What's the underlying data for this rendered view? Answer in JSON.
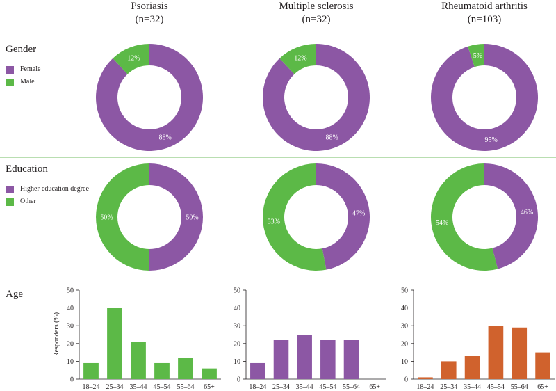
{
  "columns": [
    {
      "name": "Psoriasis",
      "n": "(n=32)"
    },
    {
      "name": "Multiple sclerosis",
      "n": "(n=32)"
    },
    {
      "name": "Rheumatoid arthritis",
      "n": "(n=103)"
    }
  ],
  "rows": {
    "gender": "Gender",
    "education": "Education",
    "age": "Age"
  },
  "legends": {
    "gender": [
      {
        "label": "Female",
        "color": "#8c57a4"
      },
      {
        "label": "Male",
        "color": "#5cb947"
      }
    ],
    "education": [
      {
        "label": "Higher-education degree",
        "color": "#8c57a4"
      },
      {
        "label": "Other",
        "color": "#5cb947"
      }
    ]
  },
  "colors": {
    "purple": "#8c57a4",
    "green": "#5cb947",
    "orange": "#d0622d",
    "divider": "#b9deb1"
  },
  "chart_data": [
    {
      "type": "pie",
      "chart": "gender",
      "column": "Psoriasis",
      "slices": [
        {
          "label": "Female",
          "value": 88,
          "text": "88%"
        },
        {
          "label": "Male",
          "value": 12,
          "text": "12%"
        }
      ]
    },
    {
      "type": "pie",
      "chart": "gender",
      "column": "Multiple sclerosis",
      "slices": [
        {
          "label": "Female",
          "value": 88,
          "text": "88%"
        },
        {
          "label": "Male",
          "value": 12,
          "text": "12%"
        }
      ]
    },
    {
      "type": "pie",
      "chart": "gender",
      "column": "Rheumatoid arthritis",
      "slices": [
        {
          "label": "Female",
          "value": 95,
          "text": "95%"
        },
        {
          "label": "Male",
          "value": 5,
          "text": "5%"
        }
      ]
    },
    {
      "type": "pie",
      "chart": "education",
      "column": "Psoriasis",
      "slices": [
        {
          "label": "Higher-education degree",
          "value": 50,
          "text": "50%"
        },
        {
          "label": "Other",
          "value": 50,
          "text": "50%"
        }
      ]
    },
    {
      "type": "pie",
      "chart": "education",
      "column": "Multiple sclerosis",
      "slices": [
        {
          "label": "Higher-education degree",
          "value": 47,
          "text": "47%"
        },
        {
          "label": "Other",
          "value": 53,
          "text": "53%"
        }
      ]
    },
    {
      "type": "pie",
      "chart": "education",
      "column": "Rheumatoid arthritis",
      "slices": [
        {
          "label": "Higher-education degree",
          "value": 46,
          "text": "46%"
        },
        {
          "label": "Other",
          "value": 54,
          "text": "54%"
        }
      ]
    },
    {
      "type": "bar",
      "chart": "age",
      "column": "Psoriasis",
      "categories": [
        "18–24",
        "25–34",
        "35–44",
        "45–54",
        "55–64",
        "65+"
      ],
      "values": [
        9,
        40,
        21,
        9,
        12,
        6
      ],
      "ylabel": "Responders (%)",
      "ylim": [
        0,
        50
      ],
      "yticks": [
        0,
        10,
        20,
        30,
        40,
        50
      ]
    },
    {
      "type": "bar",
      "chart": "age",
      "column": "Multiple sclerosis",
      "categories": [
        "18–24",
        "25–34",
        "35–44",
        "45–54",
        "55–64",
        "65+"
      ],
      "values": [
        9,
        22,
        25,
        22,
        22,
        0
      ],
      "ylim": [
        0,
        50
      ],
      "yticks": [
        0,
        10,
        20,
        30,
        40,
        50
      ]
    },
    {
      "type": "bar",
      "chart": "age",
      "column": "Rheumatoid arthritis",
      "categories": [
        "18–24",
        "25–34",
        "35–44",
        "45–54",
        "55–64",
        "65+"
      ],
      "values": [
        1,
        10,
        13,
        30,
        29,
        15
      ],
      "ylim": [
        0,
        50
      ],
      "yticks": [
        0,
        10,
        20,
        30,
        40,
        50
      ]
    }
  ]
}
